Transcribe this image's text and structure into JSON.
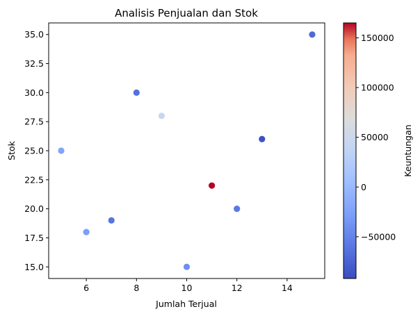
{
  "chart_data": {
    "type": "scatter",
    "title": "Analisis Penjualan dan Stok",
    "xlabel": "Jumlah Terjual",
    "ylabel": "Stok",
    "xlim": [
      4.5,
      15.5
    ],
    "ylim": [
      14.0,
      36.0
    ],
    "xticks": [
      "6",
      "8",
      "10",
      "12",
      "14"
    ],
    "yticks": [
      "15.0",
      "17.5",
      "20.0",
      "22.5",
      "25.0",
      "27.5",
      "30.0",
      "32.5",
      "35.0"
    ],
    "points": [
      {
        "x": 5,
        "y": 25,
        "c": -22000
      },
      {
        "x": 6,
        "y": 18,
        "c": -28000
      },
      {
        "x": 7,
        "y": 19,
        "c": -62000
      },
      {
        "x": 8,
        "y": 30,
        "c": -65000
      },
      {
        "x": 9,
        "y": 28,
        "c": 45000
      },
      {
        "x": 10,
        "y": 15,
        "c": -40000
      },
      {
        "x": 11,
        "y": 22,
        "c": 165000
      },
      {
        "x": 12,
        "y": 20,
        "c": -58000
      },
      {
        "x": 13,
        "y": 26,
        "c": -88000
      },
      {
        "x": 15,
        "y": 35,
        "c": -70000
      }
    ],
    "grid": false,
    "colorbar": {
      "label": "Keuntungan",
      "range": [
        -92000,
        165000
      ],
      "ticks": [
        "150000",
        "100000",
        "50000",
        "0",
        "−50000"
      ],
      "colormap": "coolwarm"
    }
  }
}
